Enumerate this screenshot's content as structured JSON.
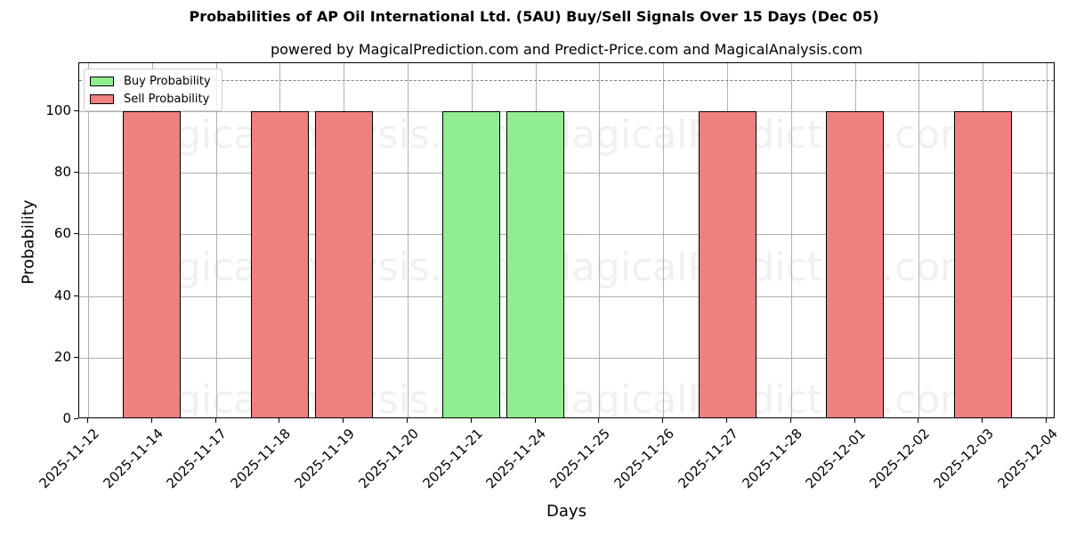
{
  "chart_data": {
    "type": "bar",
    "title": "Probabilities of AP Oil International Ltd. (5AU) Buy/Sell Signals Over 15 Days (Dec 05)",
    "subtitle": "powered by MagicalPrediction.com and Predict-Price.com and MagicalAnalysis.com",
    "xlabel": "Days",
    "ylabel": "Probability",
    "ylim": [
      0,
      116
    ],
    "yticks": [
      0,
      20,
      40,
      60,
      80,
      100
    ],
    "xticks": [
      "2025-11-12",
      "2025-11-14",
      "2025-11-17",
      "2025-11-18",
      "2025-11-19",
      "2025-11-20",
      "2025-11-21",
      "2025-11-24",
      "2025-11-25",
      "2025-11-26",
      "2025-11-27",
      "2025-11-28",
      "2025-12-01",
      "2025-12-02",
      "2025-12-03",
      "2025-12-04"
    ],
    "reference_line": {
      "y": 110,
      "style": "dashed",
      "color": "#808080"
    },
    "grid": true,
    "legend_position": "upper left",
    "categories": [
      "2025-11-14",
      "2025-11-18",
      "2025-11-19",
      "2025-11-21",
      "2025-11-24",
      "2025-11-27",
      "2025-12-01",
      "2025-12-03"
    ],
    "series": [
      {
        "name": "Buy Probability",
        "color": "#90ee90",
        "values": [
          0,
          0,
          0,
          100,
          100,
          0,
          0,
          0
        ]
      },
      {
        "name": "Sell Probability",
        "color": "#f08080",
        "values": [
          100,
          100,
          100,
          0,
          0,
          100,
          100,
          100
        ]
      }
    ],
    "watermarks": [
      "MagicalAnalysis.com",
      "MagicalPrediction.com"
    ]
  },
  "legend": {
    "buy_label": "Buy Probability",
    "sell_label": "Sell Probability"
  }
}
